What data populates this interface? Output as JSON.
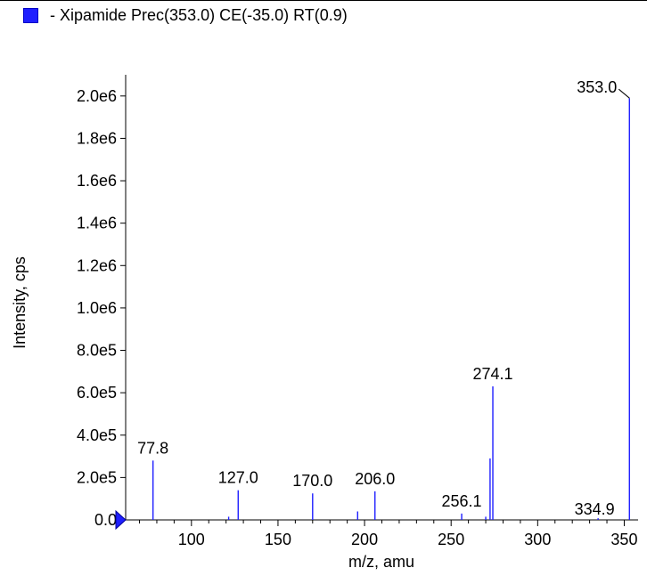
{
  "chart_data": {
    "type": "bar",
    "title": "- Xipamide  Prec(353.0) CE(-35.0) RT(0.9)",
    "xlabel": "m/z, amu",
    "ylabel": "Intensity, cps",
    "xlim": [
      62,
      358
    ],
    "ylim": [
      0,
      2100000
    ],
    "x_ticks": [
      100,
      150,
      200,
      250,
      300,
      350
    ],
    "y_ticks": [
      "0.0",
      "2.0e5",
      "4.0e5",
      "6.0e5",
      "8.0e5",
      "1.0e6",
      "1.2e6",
      "1.4e6",
      "1.6e6",
      "1.8e6",
      "2.0e6"
    ],
    "y_tick_values": [
      0,
      200000,
      400000,
      600000,
      800000,
      1000000,
      1200000,
      1400000,
      1600000,
      1800000,
      2000000
    ],
    "series_color": "#1f1fff",
    "peaks": [
      {
        "mz": 77.8,
        "intensity": 280000,
        "label": "77.8"
      },
      {
        "mz": 121.5,
        "intensity": 15000,
        "label": ""
      },
      {
        "mz": 127.0,
        "intensity": 140000,
        "label": "127.0"
      },
      {
        "mz": 170.0,
        "intensity": 125000,
        "label": "170.0"
      },
      {
        "mz": 196.0,
        "intensity": 40000,
        "label": ""
      },
      {
        "mz": 206.0,
        "intensity": 135000,
        "label": "206.0"
      },
      {
        "mz": 256.1,
        "intensity": 30000,
        "label": "256.1"
      },
      {
        "mz": 270.0,
        "intensity": 15000,
        "label": ""
      },
      {
        "mz": 272.5,
        "intensity": 290000,
        "label": ""
      },
      {
        "mz": 274.1,
        "intensity": 630000,
        "label": "274.1"
      },
      {
        "mz": 334.9,
        "intensity": 8000,
        "label": "334.9"
      },
      {
        "mz": 353.0,
        "intensity": 1990000,
        "label": "353.0"
      }
    ]
  }
}
